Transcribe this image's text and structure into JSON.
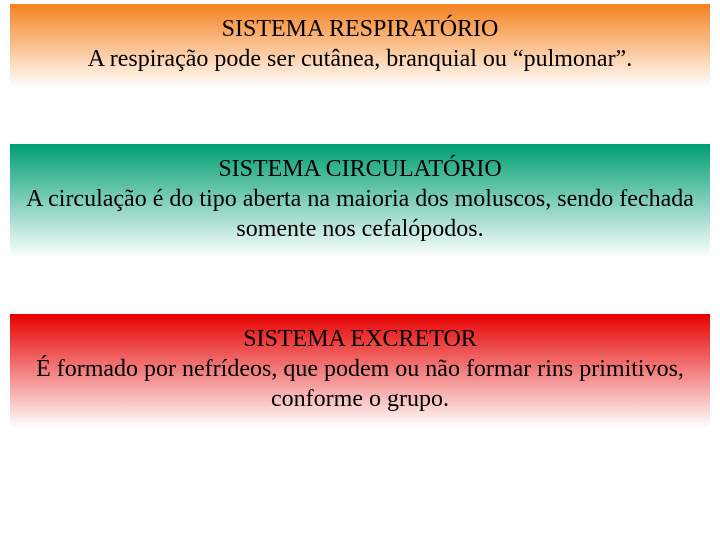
{
  "blocks": [
    {
      "title": "SISTEMA RESPIRATÓRIO",
      "body": "A respiração pode ser cutânea, branquial ou “pulmonar”.",
      "gradient_top": "#f58220",
      "gradient_bottom": "#ffffff"
    },
    {
      "title": "SISTEMA CIRCULATÓRIO",
      "body": "A circulação é do tipo aberta na maioria dos moluscos, sendo fechada somente nos cefalópodos.",
      "gradient_top": "#009e73",
      "gradient_bottom": "#ffffff"
    },
    {
      "title": "SISTEMA EXCRETOR",
      "body": "É formado por nefrídeos, que podem ou não formar rins primitivos, conforme o grupo.",
      "gradient_top": "#e60000",
      "gradient_bottom": "#ffffff"
    }
  ],
  "title_fontsize": 24,
  "body_fontsize": 24,
  "font_family": "Times New Roman",
  "text_color": "#000000",
  "background_color": "#ffffff"
}
